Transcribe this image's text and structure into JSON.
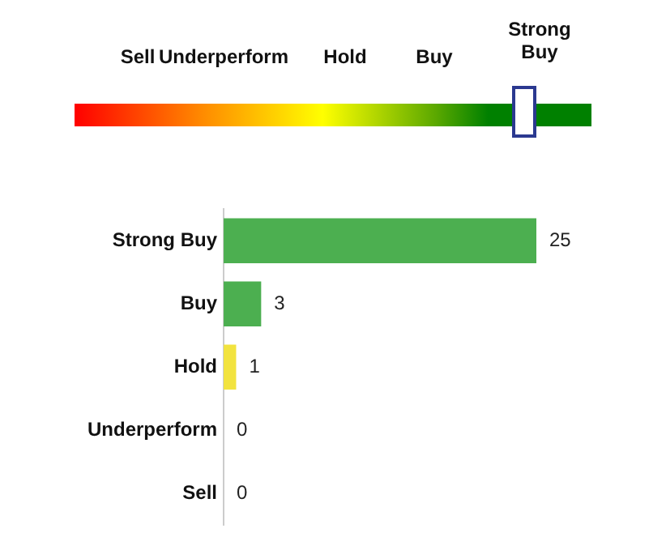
{
  "chart_data": {
    "type": "bar",
    "orientation": "horizontal",
    "categories": [
      "Strong Buy",
      "Buy",
      "Hold",
      "Underperform",
      "Sell"
    ],
    "values": [
      25,
      3,
      1,
      0,
      0
    ],
    "colors": [
      "#4caf50",
      "#4caf50",
      "#f2e33f",
      "#4caf50",
      "#4caf50"
    ],
    "data_labels": true,
    "tick_labels": "y"
  }
}
